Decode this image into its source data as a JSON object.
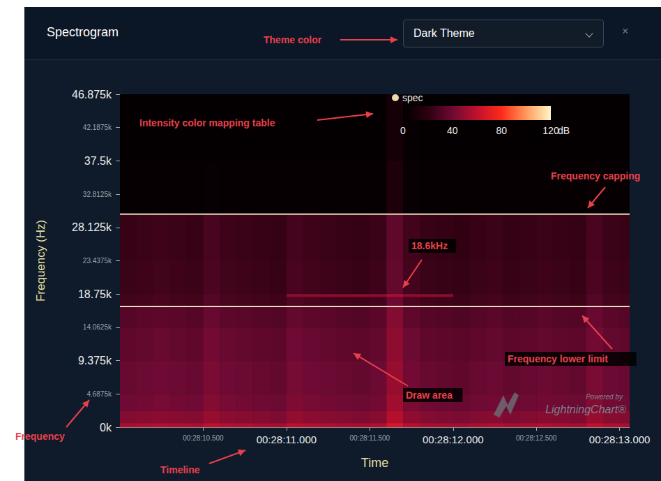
{
  "panel": {
    "title": "Spectrogram",
    "theme": "Dark Theme",
    "close": "×"
  },
  "annotations": [
    "Theme color",
    "Intensity color mapping table",
    "Frequency capping",
    "18.6kHz",
    "Frequency lower limit",
    "Draw area",
    "Frequency",
    "Timeline"
  ],
  "watermark": [
    "Powered by",
    "LightningChart®"
  ],
  "chart_data": {
    "type": "heatmap",
    "series_name": "spec",
    "legend": "top",
    "x_label": "Time",
    "y_label": "Frequency (Hz)",
    "xlim": [
      1690.0,
      1693.06
    ],
    "xticks": [
      {
        "value": 1690.5,
        "label": "00:28:10.500"
      },
      {
        "value": 1691.0,
        "label": "00:28:11.000"
      },
      {
        "value": 1691.5,
        "label": "00:28:11.500"
      },
      {
        "value": 1692.0,
        "label": "00:28:12.000"
      },
      {
        "value": 1692.5,
        "label": "00:28:12.500"
      },
      {
        "value": 1693.0,
        "label": "00:28:13.000"
      }
    ],
    "ylim": [
      0,
      46875
    ],
    "yticks": [
      {
        "value": 0,
        "label": "0k"
      },
      {
        "value": 4687.5,
        "label": "4.6875k"
      },
      {
        "value": 9375,
        "label": "9.375k"
      },
      {
        "value": 14062.5,
        "label": "14.0625k"
      },
      {
        "value": 18750,
        "label": "18.75k"
      },
      {
        "value": 23437.5,
        "label": "23.4375k"
      },
      {
        "value": 28125,
        "label": "28.125k"
      },
      {
        "value": 32812.5,
        "label": "32.8125k"
      },
      {
        "value": 37500,
        "label": "37.5k"
      },
      {
        "value": 42187.5,
        "label": "42.1875k"
      },
      {
        "value": 46875,
        "label": "46.875k"
      }
    ],
    "grid": false,
    "limits": {
      "upper": 30000,
      "lower": 17000
    },
    "color_range": [
      0,
      120
    ],
    "color_ticks": [
      0,
      40,
      80,
      120
    ],
    "color_label": "dB",
    "time_bins": [
      1690.0,
      1690.1,
      1690.2,
      1690.3,
      1690.4,
      1690.5,
      1690.6,
      1690.7,
      1690.8,
      1690.9,
      1691.0,
      1691.1,
      1691.2,
      1691.3,
      1691.4,
      1691.5,
      1691.6,
      1691.7,
      1691.8,
      1691.9,
      1692.0,
      1692.1,
      1692.2,
      1692.3,
      1692.4,
      1692.5,
      1692.6,
      1692.7,
      1692.8,
      1692.9,
      1693.0,
      1693.06
    ],
    "freq_bins": [
      0,
      600,
      2343.75,
      4687.5,
      9375,
      14062.5,
      17000,
      18400,
      18800,
      23437.5,
      28125,
      30000,
      37500,
      46875
    ],
    "cells": [
      [
        55,
        56,
        57,
        56,
        55,
        60,
        57,
        56,
        55,
        54,
        59,
        57,
        56,
        55,
        54,
        56,
        67,
        58,
        55,
        54,
        53,
        55,
        56,
        54,
        55,
        56,
        55,
        54,
        60,
        56,
        55
      ],
      [
        45,
        46,
        47,
        46,
        45,
        50,
        47,
        46,
        45,
        44,
        49,
        47,
        46,
        45,
        44,
        46,
        57,
        48,
        45,
        44,
        43,
        45,
        46,
        44,
        45,
        46,
        45,
        44,
        50,
        46,
        45
      ],
      [
        40,
        41,
        42,
        41,
        40,
        45,
        42,
        41,
        40,
        39,
        44,
        42,
        41,
        40,
        39,
        41,
        52,
        43,
        40,
        39,
        38,
        40,
        41,
        39,
        40,
        41,
        40,
        39,
        45,
        41,
        40
      ],
      [
        38,
        39,
        40,
        39,
        38,
        43,
        40,
        39,
        38,
        37,
        42,
        40,
        39,
        38,
        37,
        39,
        50,
        41,
        38,
        37,
        36,
        38,
        39,
        37,
        38,
        39,
        38,
        37,
        43,
        39,
        38
      ],
      [
        36,
        37,
        38,
        37,
        36,
        41,
        38,
        37,
        36,
        35,
        40,
        38,
        37,
        36,
        35,
        37,
        48,
        39,
        36,
        35,
        34,
        36,
        37,
        35,
        36,
        37,
        36,
        35,
        41,
        37,
        36
      ],
      [
        33,
        34,
        35,
        34,
        33,
        38,
        35,
        34,
        33,
        32,
        37,
        35,
        34,
        33,
        32,
        34,
        45,
        36,
        33,
        32,
        31,
        33,
        34,
        32,
        33,
        34,
        33,
        32,
        38,
        34,
        33
      ],
      [
        27,
        28,
        29,
        28,
        27,
        32,
        29,
        28,
        27,
        26,
        31,
        29,
        28,
        27,
        26,
        28,
        39,
        30,
        27,
        26,
        25,
        27,
        28,
        26,
        27,
        28,
        27,
        26,
        32,
        28,
        27
      ],
      [
        27,
        28,
        29,
        28,
        27,
        32,
        29,
        28,
        27,
        26,
        48,
        48,
        48,
        48,
        48,
        48,
        55,
        48,
        48,
        48,
        25,
        27,
        28,
        26,
        27,
        28,
        27,
        26,
        32,
        28,
        27
      ],
      [
        25,
        26,
        27,
        26,
        25,
        30,
        27,
        26,
        25,
        24,
        29,
        27,
        26,
        25,
        24,
        26,
        37,
        28,
        25,
        24,
        23,
        25,
        26,
        24,
        25,
        26,
        25,
        24,
        30,
        26,
        25
      ],
      [
        24,
        25,
        26,
        25,
        24,
        29,
        26,
        25,
        24,
        23,
        28,
        26,
        25,
        24,
        23,
        25,
        36,
        27,
        24,
        23,
        22,
        24,
        25,
        23,
        24,
        25,
        24,
        23,
        29,
        25,
        24
      ],
      [
        24,
        25,
        26,
        25,
        24,
        29,
        26,
        25,
        24,
        23,
        28,
        26,
        25,
        24,
        23,
        25,
        36,
        27,
        24,
        23,
        22,
        24,
        25,
        23,
        24,
        25,
        24,
        23,
        29,
        25,
        24
      ],
      [
        3,
        3,
        3,
        3,
        3,
        4,
        3,
        3,
        3,
        3,
        3,
        3,
        3,
        3,
        3,
        3,
        14,
        4,
        3,
        3,
        3,
        3,
        3,
        3,
        3,
        3,
        3,
        3,
        4,
        3,
        3
      ],
      [
        2,
        2,
        2,
        2,
        2,
        2,
        2,
        2,
        2,
        2,
        2,
        2,
        2,
        2,
        2,
        2,
        10,
        3,
        2,
        2,
        2,
        2,
        2,
        2,
        2,
        2,
        2,
        2,
        2,
        2,
        2
      ]
    ]
  }
}
